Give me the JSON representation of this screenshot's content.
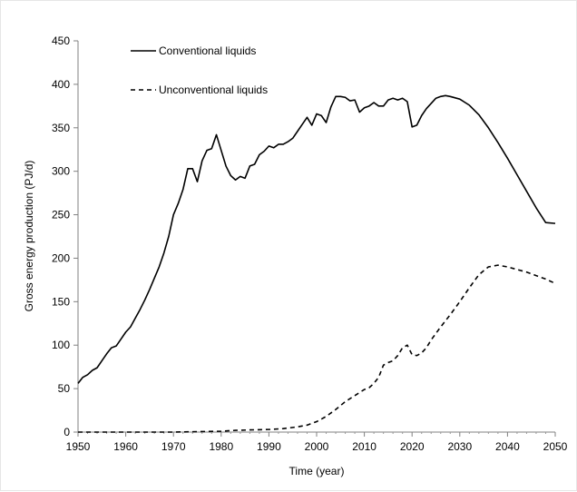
{
  "chart_data": {
    "type": "line",
    "title": "",
    "xlabel": "Time (year)",
    "ylabel": "Gross energy production (PJ/d)",
    "xlim": [
      1950,
      2050
    ],
    "ylim": [
      0,
      450
    ],
    "x_ticks": [
      1950,
      1960,
      1970,
      1980,
      1990,
      2000,
      2010,
      2020,
      2030,
      2040,
      2050
    ],
    "y_ticks": [
      0,
      50,
      100,
      150,
      200,
      250,
      300,
      350,
      400,
      450
    ],
    "grid": false,
    "legend_position": "top-left",
    "series": [
      {
        "name": "Conventional liquids",
        "style": "solid",
        "color": "#000000",
        "x": [
          1950,
          1951,
          1952,
          1953,
          1954,
          1955,
          1956,
          1957,
          1958,
          1959,
          1960,
          1961,
          1962,
          1963,
          1964,
          1965,
          1966,
          1967,
          1968,
          1969,
          1970,
          1971,
          1972,
          1973,
          1974,
          1975,
          1976,
          1977,
          1978,
          1979,
          1980,
          1981,
          1982,
          1983,
          1984,
          1985,
          1986,
          1987,
          1988,
          1989,
          1990,
          1991,
          1992,
          1993,
          1994,
          1995,
          1996,
          1997,
          1998,
          1999,
          2000,
          2001,
          2002,
          2003,
          2004,
          2005,
          2006,
          2007,
          2008,
          2009,
          2010,
          2011,
          2012,
          2013,
          2014,
          2015,
          2016,
          2017,
          2018,
          2019,
          2020,
          2021,
          2022,
          2023,
          2024,
          2025,
          2026,
          2027,
          2028,
          2030,
          2032,
          2034,
          2036,
          2038,
          2040,
          2042,
          2044,
          2046,
          2048,
          2050
        ],
        "values": [
          56,
          63,
          66,
          71,
          74,
          82,
          90,
          97,
          99,
          107,
          115,
          121,
          131,
          141,
          152,
          164,
          177,
          190,
          206,
          225,
          250,
          263,
          279,
          303,
          303,
          288,
          312,
          324,
          326,
          342,
          324,
          306,
          295,
          290,
          294,
          292,
          306,
          308,
          319,
          323,
          329,
          327,
          331,
          331,
          334,
          338,
          346,
          354,
          362,
          353,
          366,
          364,
          356,
          374,
          386,
          386,
          385,
          381,
          382,
          368,
          373,
          375,
          379,
          375,
          375,
          382,
          384,
          382,
          384,
          380,
          351,
          353,
          364,
          372,
          378,
          384,
          386,
          387,
          386,
          383,
          376,
          365,
          350,
          333,
          315,
          296,
          277,
          258,
          241,
          240
        ],
        "note_range": "ends at ~240 in 2050"
      },
      {
        "name": "Unconventional liquids",
        "style": "dashed",
        "color": "#000000",
        "x": [
          1950,
          1960,
          1970,
          1975,
          1980,
          1983,
          1986,
          1990,
          1993,
          1996,
          1998,
          2000,
          2002,
          2004,
          2006,
          2008,
          2010,
          2011,
          2012,
          2013,
          2014,
          2015,
          2016,
          2017,
          2018,
          2019,
          2020,
          2021,
          2022,
          2023,
          2024,
          2026,
          2028,
          2030,
          2032,
          2034,
          2036,
          2038,
          2040,
          2042,
          2044,
          2046,
          2048,
          2050
        ],
        "values": [
          0,
          0,
          0,
          0.5,
          1,
          2,
          2.5,
          3,
          4,
          6,
          8,
          12,
          18,
          26,
          35,
          42,
          49,
          51,
          56,
          63,
          77,
          80,
          82,
          88,
          97,
          100,
          89,
          88,
          91,
          97,
          106,
          121,
          135,
          150,
          166,
          181,
          190,
          192,
          190,
          187,
          184,
          180,
          176,
          171
        ]
      }
    ]
  }
}
